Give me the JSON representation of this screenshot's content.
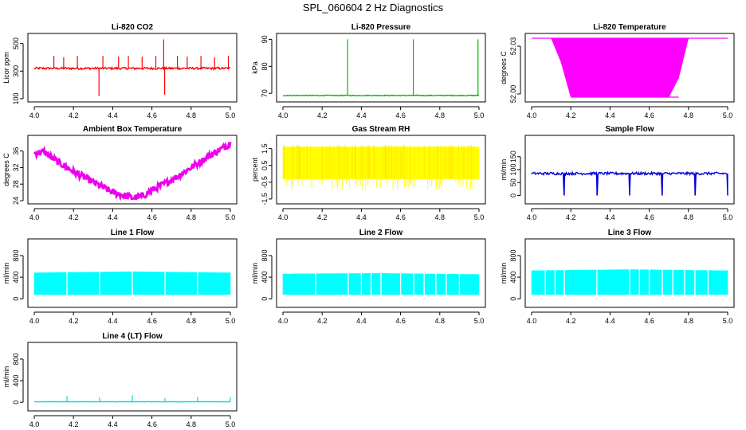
{
  "title": "SPL_060604  2 Hz Diagnostics",
  "chart_data": [
    {
      "id": "co2",
      "type": "line",
      "title": "Li-820 CO2",
      "ylabel": "Licor ppm",
      "color": "#ff0000",
      "xlim": [
        4.0,
        5.0
      ],
      "ylim": [
        100,
        550
      ],
      "x_ticks": [
        "4.0",
        "4.2",
        "4.4",
        "4.6",
        "4.8",
        "5.0"
      ],
      "y_ticks": [
        "100",
        "300",
        "500"
      ],
      "series": [
        {
          "name": "CO2",
          "baseline": 320,
          "noise": 8,
          "spikes": [
            [
              4.1,
              410
            ],
            [
              4.15,
              400
            ],
            [
              4.22,
              410
            ],
            [
              4.33,
              120
            ],
            [
              4.35,
              410
            ],
            [
              4.43,
              405
            ],
            [
              4.48,
              410
            ],
            [
              4.55,
              405
            ],
            [
              4.62,
              410
            ],
            [
              4.66,
              530
            ],
            [
              4.665,
              130
            ],
            [
              4.73,
              410
            ],
            [
              4.78,
              405
            ],
            [
              4.85,
              410
            ],
            [
              4.92,
              400
            ],
            [
              4.99,
              410
            ]
          ]
        }
      ]
    },
    {
      "id": "pressure",
      "type": "line",
      "title": "Li-820 Pressure",
      "ylabel": "kPa",
      "color": "#00bb00",
      "xlim": [
        4.0,
        5.0
      ],
      "ylim": [
        68,
        91
      ],
      "x_ticks": [
        "4.0",
        "4.2",
        "4.4",
        "4.6",
        "4.8",
        "5.0"
      ],
      "y_ticks": [
        "70",
        "80",
        "90"
      ],
      "series": [
        {
          "name": "Pressure",
          "baseline": 69.2,
          "noise": 0.15,
          "spikes": [
            [
              4.33,
              90
            ],
            [
              4.665,
              90
            ],
            [
              4.995,
              90
            ]
          ]
        }
      ]
    },
    {
      "id": "temperature",
      "type": "area",
      "title": "Li-820 Temperature",
      "ylabel": "degrees C",
      "color": "#ff00ff",
      "xlim": [
        4.0,
        5.0
      ],
      "ylim": [
        51.997,
        52.036
      ],
      "x_ticks": [
        "4.0",
        "4.2",
        "4.4",
        "4.6",
        "4.8",
        "5.0"
      ],
      "y_ticks": [
        "52.00",
        "52.03"
      ],
      "series": [
        {
          "name": "Temperature",
          "high": 52.035,
          "low": 51.998
        }
      ]
    },
    {
      "id": "ambient",
      "type": "line",
      "title": "Ambient Box Temperature",
      "ylabel": "degrees C",
      "color": "#ee00ee",
      "xlim": [
        4.0,
        5.0
      ],
      "ylim": [
        24,
        39
      ],
      "x_ticks": [
        "4.0",
        "4.2",
        "4.4",
        "4.6",
        "4.8",
        "5.0"
      ],
      "y_ticks": [
        "24",
        "28",
        "32",
        "36"
      ],
      "series": [
        {
          "name": "Ambient",
          "points": [
            [
              4.0,
              35.5
            ],
            [
              4.05,
              35.8
            ],
            [
              4.1,
              34
            ],
            [
              4.2,
              31
            ],
            [
              4.3,
              28.5
            ],
            [
              4.4,
              26
            ],
            [
              4.5,
              24.7
            ],
            [
              4.55,
              25
            ],
            [
              4.6,
              26.5
            ],
            [
              4.7,
              29
            ],
            [
              4.8,
              32
            ],
            [
              4.9,
              35
            ],
            [
              5.0,
              37.8
            ]
          ]
        }
      ]
    },
    {
      "id": "rh",
      "type": "area",
      "title": "Gas Stream RH",
      "ylabel": "percent",
      "color": "#ffff00",
      "xlim": [
        4.0,
        5.0
      ],
      "ylim": [
        -1.6,
        2.1
      ],
      "x_ticks": [
        "4.0",
        "4.2",
        "4.4",
        "4.6",
        "4.8",
        "5.0"
      ],
      "y_ticks": [
        "-1.5",
        "-0.5",
        "0.5",
        "1.5"
      ],
      "series": [
        {
          "name": "RH",
          "high": 1.6,
          "low": -0.3,
          "noise_low": -1.0
        }
      ]
    },
    {
      "id": "sample",
      "type": "line",
      "title": "Sample Flow",
      "ylabel": "ml/min",
      "color": "#0000dd",
      "xlim": [
        4.0,
        5.0
      ],
      "ylim": [
        -20,
        220
      ],
      "x_ticks": [
        "4.0",
        "4.2",
        "4.4",
        "4.6",
        "4.8",
        "5.0"
      ],
      "y_ticks": [
        "0",
        "50",
        "100",
        "150"
      ],
      "series": [
        {
          "name": "Sample",
          "baseline": 85,
          "noise": 5,
          "dips": [
            4.167,
            4.333,
            4.5,
            4.667,
            4.833,
            5.0
          ],
          "dip_value": 0
        }
      ]
    },
    {
      "id": "line1",
      "type": "area",
      "title": "Line 1 Flow",
      "ylabel": "ml/min",
      "color": "#00ffff",
      "xlim": [
        4.0,
        5.0
      ],
      "ylim": [
        -100,
        1050
      ],
      "x_ticks": [
        "4.0",
        "4.2",
        "4.4",
        "4.6",
        "4.8",
        "5.0"
      ],
      "y_ticks": [
        "0",
        "400",
        "800"
      ],
      "series": [
        {
          "name": "Line 1",
          "high": [
            [
              4.0,
              480
            ],
            [
              4.5,
              500
            ],
            [
              5.0,
              480
            ]
          ],
          "low": 80,
          "gaps": [
            4.167,
            4.333,
            4.5,
            4.667,
            4.833
          ]
        }
      ]
    },
    {
      "id": "line2",
      "type": "area",
      "title": "Line 2 Flow",
      "ylabel": "ml/min",
      "color": "#00ffff",
      "xlim": [
        4.0,
        5.0
      ],
      "ylim": [
        -100,
        1050
      ],
      "x_ticks": [
        "4.0",
        "4.2",
        "4.4",
        "4.6",
        "4.8",
        "5.0"
      ],
      "y_ticks": [
        "0",
        "400",
        "800"
      ],
      "series": [
        {
          "name": "Line 2",
          "high": [
            [
              4.0,
              460
            ],
            [
              4.5,
              470
            ],
            [
              5.0,
              450
            ]
          ],
          "low": 80,
          "gaps": [
            4.167,
            4.333,
            4.4,
            4.45,
            4.5,
            4.6,
            4.667,
            4.72,
            4.78,
            4.833,
            4.9
          ]
        }
      ]
    },
    {
      "id": "line3",
      "type": "area",
      "title": "Line 3 Flow",
      "ylabel": "ml/min",
      "color": "#00ffff",
      "xlim": [
        4.0,
        5.0
      ],
      "ylim": [
        -100,
        1050
      ],
      "x_ticks": [
        "4.0",
        "4.2",
        "4.4",
        "4.6",
        "4.8",
        "5.0"
      ],
      "y_ticks": [
        "0",
        "400",
        "800"
      ],
      "series": [
        {
          "name": "Line 3",
          "high": [
            [
              4.0,
              520
            ],
            [
              4.5,
              540
            ],
            [
              5.0,
              520
            ]
          ],
          "low": 80,
          "gaps": [
            4.07,
            4.12,
            4.167,
            4.333,
            4.5,
            4.55,
            4.6,
            4.667,
            4.72,
            4.78,
            4.833,
            4.9
          ]
        }
      ]
    },
    {
      "id": "line4",
      "type": "line",
      "title": "Line 4 (LT) Flow",
      "ylabel": "ml/min",
      "color": "#00dddd",
      "xlim": [
        4.0,
        5.0
      ],
      "ylim": [
        -100,
        1050
      ],
      "x_ticks": [
        "4.0",
        "4.2",
        "4.4",
        "4.6",
        "4.8",
        "5.0"
      ],
      "y_ticks": [
        "0",
        "400",
        "800"
      ],
      "series": [
        {
          "name": "Line 4",
          "baseline": 10,
          "noise": 3,
          "spikes": [
            [
              4.167,
              120
            ],
            [
              4.333,
              90
            ],
            [
              4.5,
              130
            ],
            [
              4.667,
              80
            ],
            [
              4.833,
              100
            ],
            [
              5.0,
              90
            ]
          ]
        }
      ]
    }
  ]
}
